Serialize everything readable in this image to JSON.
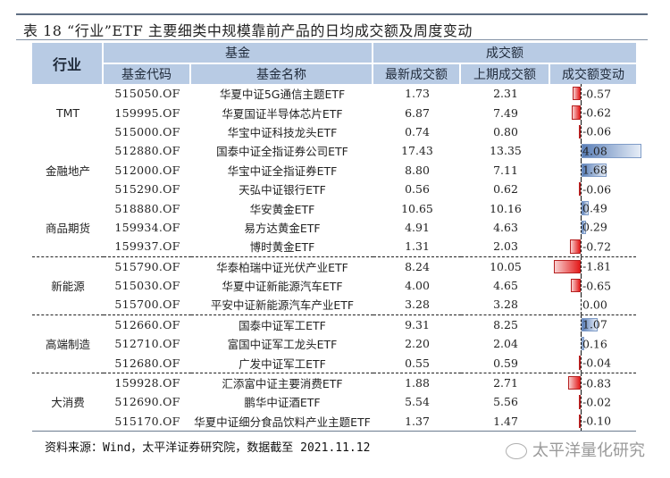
{
  "title": "表 18 “行业”ETF 主要细类中规模靠前产品的日均成交额及周度变动",
  "header": {
    "industry": "行业",
    "group_fund": "基金",
    "group_volume": "成交额",
    "fund_code": "基金代码",
    "fund_name": "基金名称",
    "latest_volume": "最新成交额",
    "prev_volume": "上期成交额",
    "volume_change": "成交额变动"
  },
  "colors": {
    "header_bg": "#b8cbe4",
    "negative_bar": "#e31b1b",
    "positive_bar": "#5a7fb8",
    "rule": "#5f6f83"
  },
  "rows": [
    {
      "industry": "",
      "code": "515050.OF",
      "name": "华夏中证5G通信主题ETF",
      "latest": "1.73",
      "prev": "2.31",
      "change": "-0.57"
    },
    {
      "industry": "TMT",
      "code": "159995.OF",
      "name": "华夏国证半导体芯片ETF",
      "latest": "6.87",
      "prev": "7.49",
      "change": "-0.62"
    },
    {
      "industry": "",
      "code": "515000.OF",
      "name": "华宝中证科技龙头ETF",
      "latest": "0.74",
      "prev": "0.80",
      "change": "-0.06"
    },
    {
      "industry": "",
      "code": "512880.OF",
      "name": "国泰中证全指证券公司ETF",
      "latest": "17.43",
      "prev": "13.35",
      "change": "4.08"
    },
    {
      "industry": "金融地产",
      "code": "512000.OF",
      "name": "华宝中证全指证券ETF",
      "latest": "8.80",
      "prev": "7.11",
      "change": "1.68"
    },
    {
      "industry": "",
      "code": "515290.OF",
      "name": "天弘中证银行ETF",
      "latest": "0.56",
      "prev": "0.62",
      "change": "-0.06"
    },
    {
      "industry": "",
      "code": "518880.OF",
      "name": "华安黄金ETF",
      "latest": "10.65",
      "prev": "10.16",
      "change": "0.49"
    },
    {
      "industry": "商品期货",
      "code": "159934.OF",
      "name": "易方达黄金ETF",
      "latest": "4.91",
      "prev": "4.63",
      "change": "0.29"
    },
    {
      "industry": "",
      "code": "159937.OF",
      "name": "博时黄金ETF",
      "latest": "1.31",
      "prev": "2.03",
      "change": "-0.72"
    },
    {
      "industry": "",
      "code": "515790.OF",
      "name": "华泰柏瑞中证光伏产业ETF",
      "latest": "8.24",
      "prev": "10.05",
      "change": "-1.81"
    },
    {
      "industry": "新能源",
      "code": "515030.OF",
      "name": "华夏中证新能源汽车ETF",
      "latest": "4.00",
      "prev": "4.65",
      "change": "-0.65"
    },
    {
      "industry": "",
      "code": "515700.OF",
      "name": "平安中证新能源汽车产业ETF",
      "latest": "3.28",
      "prev": "3.28",
      "change": "0.00"
    },
    {
      "industry": "",
      "code": "512660.OF",
      "name": "国泰中证军工ETF",
      "latest": "9.31",
      "prev": "8.25",
      "change": "1.07"
    },
    {
      "industry": "高端制造",
      "code": "512710.OF",
      "name": "富国中证军工龙头ETF",
      "latest": "2.20",
      "prev": "2.04",
      "change": "0.16"
    },
    {
      "industry": "",
      "code": "512680.OF",
      "name": "广发中证军工ETF",
      "latest": "0.55",
      "prev": "0.59",
      "change": "-0.04"
    },
    {
      "industry": "",
      "code": "159928.OF",
      "name": "汇添富中证主要消费ETF",
      "latest": "1.88",
      "prev": "2.71",
      "change": "-0.83"
    },
    {
      "industry": "大消费",
      "code": "512690.OF",
      "name": "鹏华中证酒ETF",
      "latest": "5.54",
      "prev": "5.56",
      "change": "-0.02"
    },
    {
      "industry": "",
      "code": "515170.OF",
      "name": "华夏中证细分食品饮料产业主题ETF",
      "latest": "1.37",
      "prev": "1.47",
      "change": "-0.10"
    }
  ],
  "source": "资料来源：Wind，太平洋证券研究院，数据截至 2021.11.12",
  "watermark": "太平洋量化研究"
}
